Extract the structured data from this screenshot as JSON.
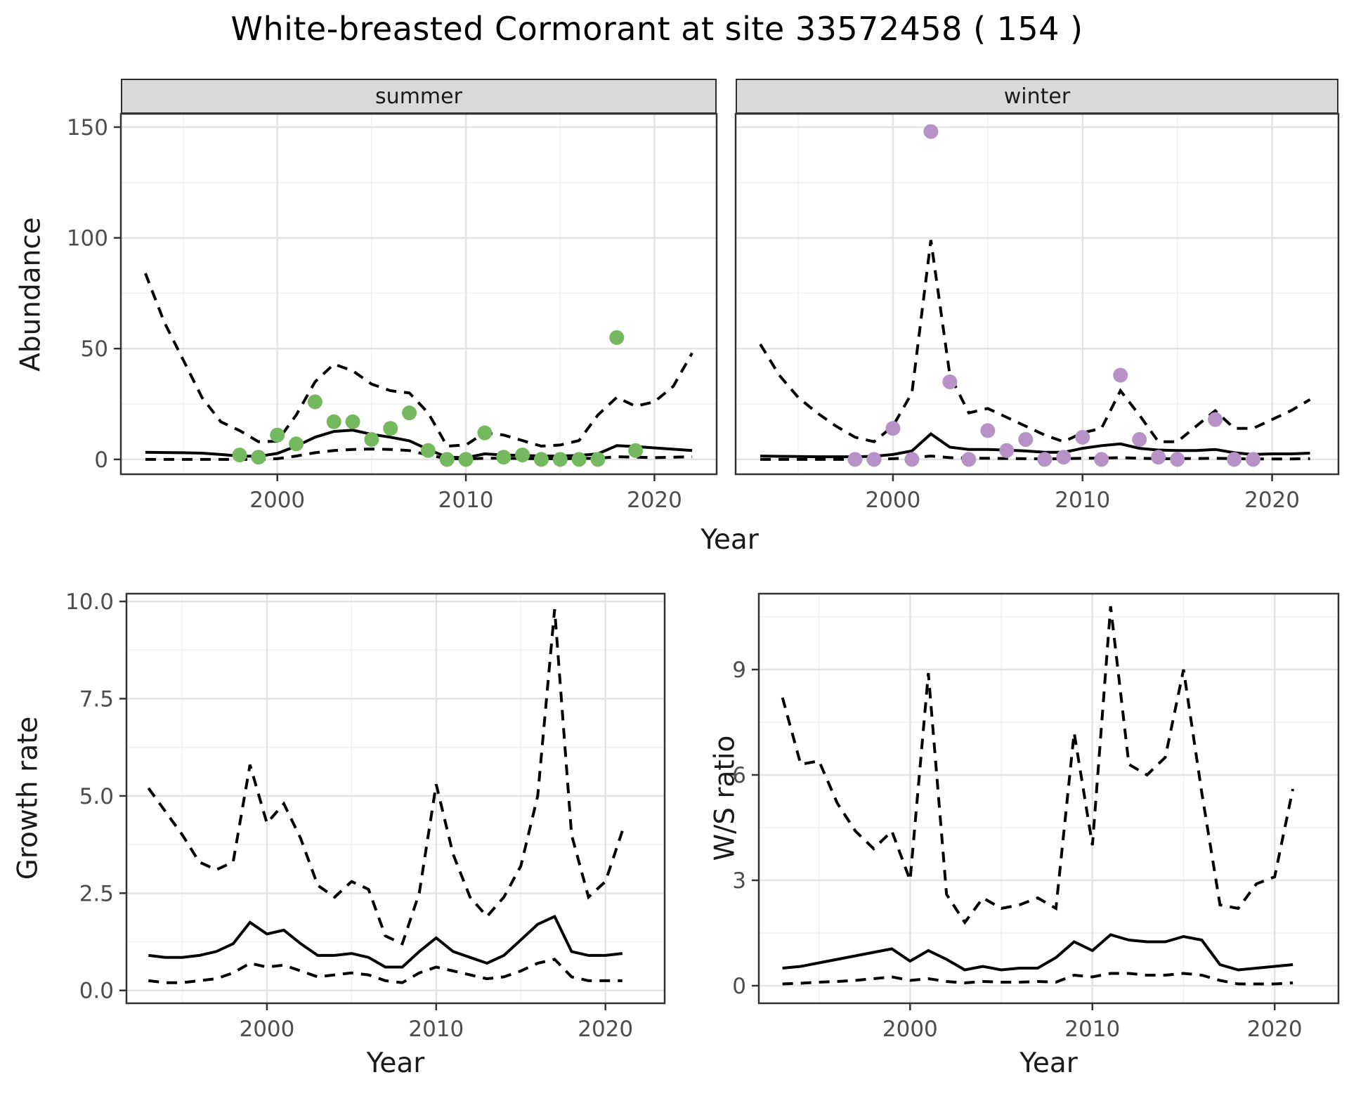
{
  "title": "White-breasted Cormorant at site 33572458 ( 154 )",
  "colors": {
    "summer_point": "#74B95F",
    "winter_point": "#B692C7",
    "line": "#000000",
    "grid_major": "#E3E3E3",
    "grid_minor": "#F1F1F1",
    "panel_border": "#333333",
    "strip_fill": "#D9D9D9",
    "axis_text": "#4D4D4D"
  },
  "chart_data": [
    {
      "id": "abundance_summer",
      "type": "line",
      "facet_label": "summer",
      "xlabel": "Year",
      "ylabel": "Abundance",
      "xlim": [
        1991.7,
        2023.3
      ],
      "ylim": [
        -6.7,
        156
      ],
      "x_axis": {
        "ticks": [
          2000,
          2010,
          2020
        ],
        "labels": [
          "2000",
          "2010",
          "2020"
        ],
        "minor": [
          1995,
          2005,
          2015
        ]
      },
      "y_axis": {
        "ticks": [
          0,
          50,
          100,
          150
        ],
        "labels": [
          "0",
          "50",
          "100",
          "150"
        ],
        "minor": [
          25,
          75,
          125
        ],
        "show_labels": true
      },
      "x": [
        1993,
        1994,
        1995,
        1996,
        1997,
        1998,
        1999,
        2000,
        2001,
        2002,
        2003,
        2004,
        2005,
        2006,
        2007,
        2008,
        2009,
        2010,
        2011,
        2012,
        2013,
        2014,
        2015,
        2016,
        2017,
        2018,
        2019,
        2020,
        2021,
        2022
      ],
      "series": [
        {
          "name": "fit_median",
          "style": "solid",
          "values": [
            3.2,
            3.1,
            3.0,
            2.8,
            2.2,
            1.5,
            1.4,
            2.7,
            6.0,
            10.0,
            12.6,
            13.2,
            11.3,
            10.0,
            8.4,
            4.5,
            1.0,
            0.8,
            2.5,
            2.0,
            1.8,
            1.5,
            1.5,
            1.8,
            2.5,
            6.2,
            5.8,
            5.2,
            4.6,
            4.0
          ]
        },
        {
          "name": "ci_upper",
          "style": "dashed",
          "values": [
            84,
            62,
            45,
            28,
            17,
            13,
            8,
            8.2,
            20,
            35,
            43,
            40,
            34,
            31,
            30,
            21,
            6,
            6.5,
            12,
            11,
            8.5,
            6,
            6.5,
            8.5,
            20,
            28,
            24,
            26,
            33,
            48
          ]
        },
        {
          "name": "ci_lower",
          "style": "dashed",
          "values": [
            0,
            0,
            0,
            0,
            0,
            0,
            0,
            0.3,
            1.5,
            3,
            4,
            4.5,
            4.7,
            4.5,
            4,
            2,
            0.3,
            0.2,
            0.5,
            0.5,
            0.4,
            0.3,
            0.3,
            0.4,
            0.5,
            1.2,
            1.0,
            0.8,
            1.0,
            1.2
          ]
        }
      ],
      "points": {
        "name": "observed_counts",
        "color": "#74B95F",
        "x": [
          1998,
          1999,
          2000,
          2001,
          2002,
          2003,
          2004,
          2005,
          2006,
          2007,
          2008,
          2009,
          2010,
          2011,
          2012,
          2013,
          2014,
          2015,
          2016,
          2017,
          2018,
          2019
        ],
        "values": [
          2,
          1,
          11,
          7,
          26,
          17,
          17,
          9,
          14,
          21,
          4,
          0,
          0,
          12,
          1,
          2,
          0,
          0,
          0,
          0,
          55,
          4
        ]
      }
    },
    {
      "id": "abundance_winter",
      "type": "line",
      "facet_label": "winter",
      "xlabel": "Year",
      "ylabel": "Abundance",
      "xlim": [
        1991.7,
        2023.5
      ],
      "ylim": [
        -6.7,
        156
      ],
      "x_axis": {
        "ticks": [
          2000,
          2010,
          2020
        ],
        "labels": [
          "2000",
          "2010",
          "2020"
        ],
        "minor": [
          1995,
          2005,
          2015
        ]
      },
      "y_axis": {
        "ticks": [
          0,
          50,
          100,
          150
        ],
        "labels": [
          "0",
          "50",
          "100",
          "150"
        ],
        "minor": [
          25,
          75,
          125
        ],
        "show_labels": false
      },
      "x": [
        1993,
        1994,
        1995,
        1996,
        1997,
        1998,
        1999,
        2000,
        2001,
        2002,
        2003,
        2004,
        2005,
        2006,
        2007,
        2008,
        2009,
        2010,
        2011,
        2012,
        2013,
        2014,
        2015,
        2016,
        2017,
        2018,
        2019,
        2020,
        2021,
        2022
      ],
      "series": [
        {
          "name": "fit_median",
          "style": "solid",
          "values": [
            1.5,
            1.4,
            1.3,
            1.2,
            1.2,
            1.2,
            1.4,
            2.2,
            3.8,
            11.5,
            5.5,
            4.5,
            4.5,
            4.2,
            3.8,
            3.2,
            3.2,
            5.0,
            6.2,
            7.0,
            5.0,
            4.2,
            4.0,
            4.0,
            4.5,
            3.0,
            2.2,
            2.5,
            2.5,
            2.8
          ]
        },
        {
          "name": "ci_upper",
          "style": "dashed",
          "values": [
            52,
            38,
            28,
            21,
            15,
            10,
            8,
            15,
            30,
            99,
            38,
            21,
            23,
            19,
            15,
            11,
            8,
            12,
            14,
            31,
            20,
            8,
            8,
            15,
            22,
            14,
            14,
            18,
            22,
            27
          ]
        },
        {
          "name": "ci_lower",
          "style": "dashed",
          "values": [
            0,
            0,
            0,
            0,
            0,
            0,
            0,
            0.3,
            0.8,
            1.5,
            0.8,
            0.5,
            0.5,
            0.4,
            0.3,
            0.2,
            0.3,
            0.5,
            0.6,
            0.8,
            0.5,
            0.3,
            0.3,
            0.4,
            0.5,
            0.3,
            0.2,
            0.2,
            0.2,
            0.3
          ]
        }
      ],
      "points": {
        "name": "observed_counts",
        "color": "#B692C7",
        "x": [
          1998,
          1999,
          2000,
          2001,
          2002,
          2003,
          2004,
          2005,
          2006,
          2007,
          2008,
          2009,
          2010,
          2011,
          2012,
          2013,
          2014,
          2015,
          2017,
          2018,
          2019
        ],
        "values": [
          0,
          0,
          14,
          0,
          148,
          35,
          0,
          13,
          4,
          9,
          0,
          1,
          10,
          0,
          38,
          9,
          1,
          0,
          18,
          0,
          0
        ]
      }
    },
    {
      "id": "growth_rate",
      "type": "line",
      "facet_label": null,
      "xlabel": "Year",
      "ylabel": "Growth rate",
      "xlim": [
        1991.7,
        2023.5
      ],
      "ylim": [
        -0.33,
        10.2
      ],
      "x_axis": {
        "ticks": [
          2000,
          2010,
          2020
        ],
        "labels": [
          "2000",
          "2010",
          "2020"
        ],
        "minor": [
          1995,
          2005,
          2015
        ]
      },
      "y_axis": {
        "ticks": [
          0.0,
          2.5,
          5.0,
          7.5,
          10.0
        ],
        "labels": [
          "0.0",
          "2.5",
          "5.0",
          "7.5",
          "10.0"
        ],
        "minor": [
          1.25,
          3.75,
          6.25,
          8.75
        ],
        "show_labels": true
      },
      "x": [
        1993,
        1994,
        1995,
        1996,
        1997,
        1998,
        1999,
        2000,
        2001,
        2002,
        2003,
        2004,
        2005,
        2006,
        2007,
        2008,
        2009,
        2010,
        2011,
        2012,
        2013,
        2014,
        2015,
        2016,
        2017,
        2018,
        2019,
        2020,
        2021
      ],
      "series": [
        {
          "name": "fit_median",
          "style": "solid",
          "values": [
            0.9,
            0.85,
            0.85,
            0.9,
            1.0,
            1.2,
            1.75,
            1.45,
            1.55,
            1.2,
            0.9,
            0.9,
            0.95,
            0.85,
            0.6,
            0.6,
            1.0,
            1.35,
            1.0,
            0.85,
            0.7,
            0.9,
            1.3,
            1.7,
            1.9,
            1.0,
            0.9,
            0.9,
            0.95
          ]
        },
        {
          "name": "ci_upper",
          "style": "dashed",
          "values": [
            5.2,
            4.6,
            4.0,
            3.3,
            3.1,
            3.3,
            5.8,
            4.3,
            4.8,
            3.9,
            2.7,
            2.4,
            2.8,
            2.6,
            1.4,
            1.2,
            2.5,
            5.3,
            3.5,
            2.4,
            1.9,
            2.4,
            3.2,
            5.0,
            9.8,
            4.0,
            2.4,
            2.8,
            4.1
          ]
        },
        {
          "name": "ci_lower",
          "style": "dashed",
          "values": [
            0.25,
            0.2,
            0.2,
            0.25,
            0.3,
            0.45,
            0.7,
            0.6,
            0.65,
            0.5,
            0.35,
            0.4,
            0.45,
            0.4,
            0.25,
            0.2,
            0.45,
            0.6,
            0.5,
            0.4,
            0.3,
            0.35,
            0.5,
            0.7,
            0.8,
            0.35,
            0.25,
            0.25,
            0.25
          ]
        }
      ],
      "points": null
    },
    {
      "id": "ws_ratio",
      "type": "line",
      "facet_label": null,
      "xlabel": "Year",
      "ylabel": "W/S ratio",
      "xlim": [
        1991.7,
        2023.5
      ],
      "ylim": [
        -0.5,
        11.16
      ],
      "x_axis": {
        "ticks": [
          2000,
          2010,
          2020
        ],
        "labels": [
          "2000",
          "2010",
          "2020"
        ],
        "minor": [
          1995,
          2005,
          2015
        ]
      },
      "y_axis": {
        "ticks": [
          0,
          3,
          6,
          9
        ],
        "labels": [
          "0",
          "3",
          "6",
          "9"
        ],
        "minor": [
          1.5,
          4.5,
          7.5,
          10.5
        ],
        "show_labels": true
      },
      "x": [
        1993,
        1994,
        1995,
        1996,
        1997,
        1998,
        1999,
        2000,
        2001,
        2002,
        2003,
        2004,
        2005,
        2006,
        2007,
        2008,
        2009,
        2010,
        2011,
        2012,
        2013,
        2014,
        2015,
        2016,
        2017,
        2018,
        2019,
        2020,
        2021
      ],
      "series": [
        {
          "name": "fit_median",
          "style": "solid",
          "values": [
            0.5,
            0.55,
            0.65,
            0.75,
            0.85,
            0.95,
            1.05,
            0.7,
            1.0,
            0.75,
            0.45,
            0.55,
            0.45,
            0.5,
            0.5,
            0.8,
            1.25,
            1.0,
            1.45,
            1.3,
            1.25,
            1.25,
            1.4,
            1.3,
            0.6,
            0.45,
            0.5,
            0.55,
            0.6
          ]
        },
        {
          "name": "ci_upper",
          "style": "dashed",
          "values": [
            8.2,
            6.3,
            6.4,
            5.2,
            4.4,
            3.9,
            4.4,
            3.0,
            8.9,
            2.6,
            1.8,
            2.5,
            2.2,
            2.3,
            2.5,
            2.2,
            7.2,
            4.0,
            10.8,
            6.3,
            6.0,
            6.5,
            9.0,
            5.5,
            2.3,
            2.2,
            2.9,
            3.1,
            5.6
          ]
        },
        {
          "name": "ci_lower",
          "style": "dashed",
          "values": [
            0.05,
            0.07,
            0.1,
            0.12,
            0.15,
            0.2,
            0.25,
            0.15,
            0.2,
            0.12,
            0.08,
            0.12,
            0.1,
            0.1,
            0.12,
            0.1,
            0.3,
            0.25,
            0.35,
            0.35,
            0.3,
            0.3,
            0.35,
            0.3,
            0.15,
            0.05,
            0.05,
            0.05,
            0.08
          ]
        }
      ],
      "points": null
    }
  ]
}
